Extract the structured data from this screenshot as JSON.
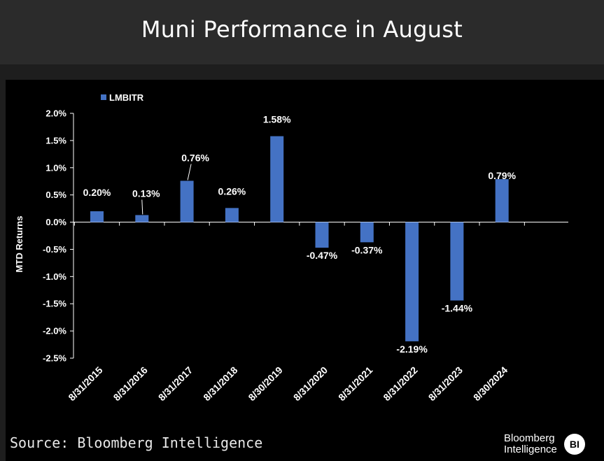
{
  "header": {
    "title": "Muni Performance in August"
  },
  "footer": {
    "source": "Source: Bloomberg Intelligence",
    "brand_line1": "Bloomberg",
    "brand_line2": "Intelligence",
    "brand_badge": "BI"
  },
  "colors": {
    "bar": "#4472c4",
    "background": "#000000",
    "title_bar": "#2b2b2b",
    "text": "#ffffff"
  },
  "chart_data": {
    "type": "bar",
    "title": "Muni Performance in August",
    "xlabel": "",
    "ylabel": "MTD Returns",
    "ylim": [
      -2.5,
      2.0
    ],
    "y_ticks": [
      2.0,
      1.5,
      1.0,
      0.5,
      0.0,
      -0.5,
      -1.0,
      -1.5,
      -2.0,
      -2.5
    ],
    "y_tick_labels": [
      "2.0%",
      "1.5%",
      "1.0%",
      "0.5%",
      "0.0%",
      "-0.5%",
      "-1.0%",
      "-1.5%",
      "-2.0%",
      "-2.5%"
    ],
    "grid": false,
    "legend_position": "top-left",
    "categories": [
      "8/31/2015",
      "8/31/2016",
      "8/31/2017",
      "8/31/2018",
      "8/30/2019",
      "8/31/2020",
      "8/31/2021",
      "8/31/2022",
      "8/31/2023",
      "8/30/2024"
    ],
    "series": [
      {
        "name": "LMBITR",
        "values": [
          0.2,
          0.13,
          0.76,
          0.26,
          1.58,
          -0.47,
          -0.37,
          -2.19,
          -1.44,
          0.79
        ],
        "labels": [
          "0.20%",
          "0.13%",
          "0.76%",
          "0.26%",
          "1.58%",
          "-0.47%",
          "-0.37%",
          "-2.19%",
          "-1.44%",
          "0.79%"
        ]
      }
    ]
  }
}
